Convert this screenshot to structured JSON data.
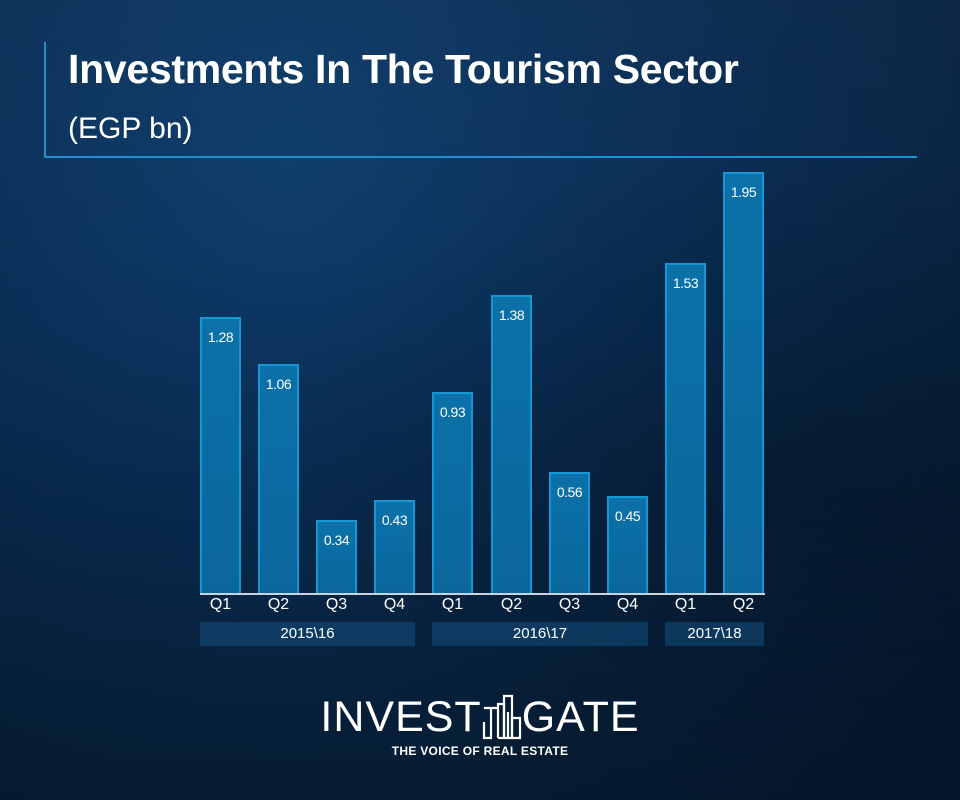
{
  "header": {
    "title": "Investments In The Tourism Sector",
    "subtitle": "(EGP bn)"
  },
  "colors": {
    "bar_fill": "#0b71a8",
    "bar_border": "#1796d6",
    "accent_line": "#1e8fd0",
    "background": "#0a2f57"
  },
  "chart_data": {
    "type": "bar",
    "title": "Investments In The Tourism Sector",
    "subtitle": "(EGP bn)",
    "xlabel": "",
    "ylabel": "EGP bn",
    "categories": [
      "Q1",
      "Q2",
      "Q3",
      "Q4",
      "Q1",
      "Q2",
      "Q3",
      "Q4",
      "Q1",
      "Q2"
    ],
    "groups": [
      {
        "label": "2015\\16",
        "quarters": [
          "Q1",
          "Q2",
          "Q3",
          "Q4"
        ]
      },
      {
        "label": "2016\\17",
        "quarters": [
          "Q1",
          "Q2",
          "Q3",
          "Q4"
        ]
      },
      {
        "label": "2017\\18",
        "quarters": [
          "Q1",
          "Q2"
        ]
      }
    ],
    "values": [
      1.28,
      1.06,
      0.34,
      0.43,
      0.93,
      1.38,
      0.56,
      0.45,
      1.53,
      1.95
    ],
    "value_labels": [
      "1.28",
      "1.06",
      "0.34",
      "0.43",
      "0.93",
      "1.38",
      "0.56",
      "0.45",
      "1.53",
      "1.95"
    ],
    "ylim": [
      0,
      2.0
    ],
    "grid": false,
    "legend": null,
    "data_labels": "inside-top"
  },
  "footer": {
    "logo_left": "INVEST",
    "logo_right": "GATE",
    "tagline": "THE VOICE OF REAL ESTATE"
  }
}
